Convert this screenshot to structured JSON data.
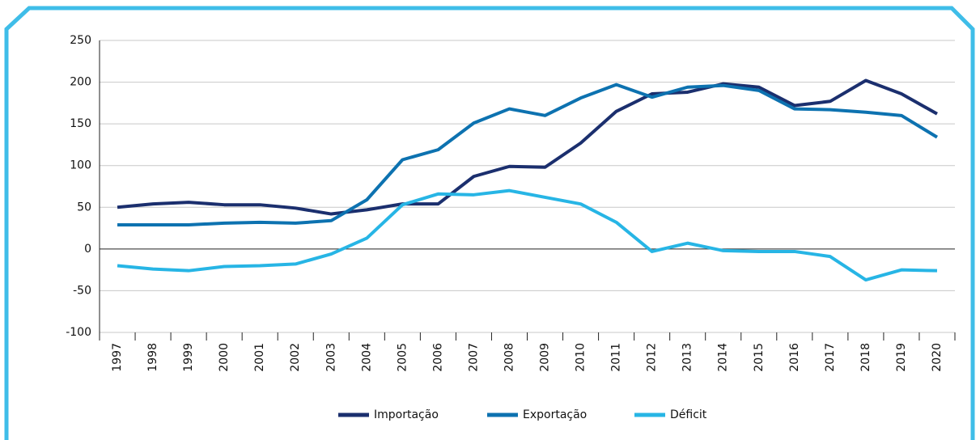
{
  "chart_data": {
    "type": "line",
    "categories": [
      "1997",
      "1998",
      "1999",
      "2000",
      "2001",
      "2002",
      "2003",
      "2004",
      "2005",
      "2006",
      "2007",
      "2008",
      "2009",
      "2010",
      "2011",
      "2012",
      "2013",
      "2014",
      "2015",
      "2016",
      "2017",
      "2018",
      "2019",
      "2020"
    ],
    "series": [
      {
        "name": "Importação",
        "color": "#1b2f6e",
        "values": [
          50,
          54,
          56,
          53,
          53,
          49,
          42,
          47,
          54,
          54,
          87,
          99,
          98,
          127,
          165,
          186,
          188,
          198,
          194,
          172,
          177,
          202,
          186,
          162
        ]
      },
      {
        "name": "Exportação",
        "color": "#0d72b0",
        "values": [
          29,
          29,
          29,
          31,
          32,
          31,
          34,
          59,
          107,
          119,
          151,
          168,
          160,
          181,
          197,
          182,
          194,
          196,
          190,
          168,
          167,
          164,
          160,
          134
        ]
      },
      {
        "name": "Déficit",
        "color": "#27b5e5",
        "values": [
          -20,
          -24,
          -26,
          -21,
          -20,
          -18,
          -6,
          13,
          53,
          66,
          65,
          70,
          62,
          54,
          32,
          -3,
          7,
          -2,
          -3,
          -3,
          -9,
          -37,
          -25,
          -26
        ]
      }
    ],
    "ylim": [
      -100,
      250
    ],
    "yticks": [
      -100,
      -50,
      0,
      50,
      100,
      150,
      200,
      250
    ],
    "grid": true,
    "legend": "bottom"
  }
}
